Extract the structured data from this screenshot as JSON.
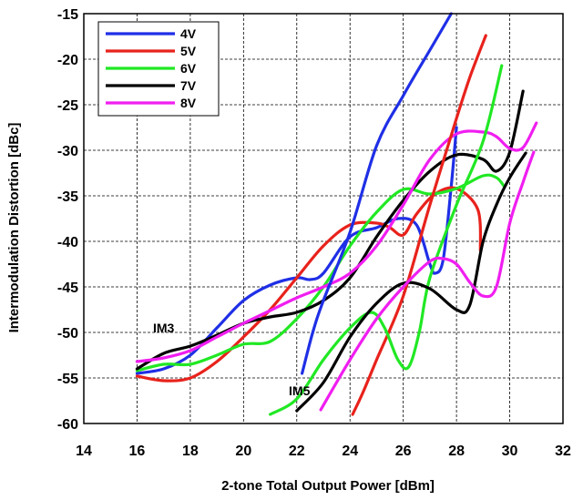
{
  "chart_data": {
    "type": "line",
    "title": "",
    "xlabel": "2-tone Total Output Power  [dBm]",
    "ylabel": "Intermodulation Distortion  [dBc]",
    "xlim": [
      14,
      32
    ],
    "ylim": [
      -60,
      -15
    ],
    "xticks": [
      14,
      16,
      18,
      20,
      22,
      24,
      26,
      28,
      30,
      32
    ],
    "yticks": [
      -15,
      -20,
      -25,
      -30,
      -35,
      -40,
      -45,
      -50,
      -55,
      -60
    ],
    "grid": true,
    "legend_position": "top-left",
    "annotations": [
      {
        "text": "IM3",
        "x": 17.0,
        "y": -50.0
      },
      {
        "text": "IM5",
        "x": 22.1,
        "y": -56.9
      }
    ],
    "series": [
      {
        "name": "4V",
        "color": "#1f2fe6",
        "group": "IM3",
        "points": [
          [
            16,
            -54.5
          ],
          [
            17,
            -54.0
          ],
          [
            18,
            -52.5
          ],
          [
            19,
            -49.5
          ],
          [
            20,
            -46.5
          ],
          [
            21,
            -44.8
          ],
          [
            22,
            -44.0
          ],
          [
            22.5,
            -44.2
          ],
          [
            23,
            -43.5
          ],
          [
            24,
            -39.5
          ],
          [
            25,
            -38.5
          ],
          [
            25.8,
            -37.5
          ],
          [
            26.5,
            -38.2
          ],
          [
            27.0,
            -42.5
          ],
          [
            27.2,
            -43.5
          ],
          [
            27.5,
            -42.0
          ],
          [
            27.8,
            -34.0
          ],
          [
            28.0,
            -27.5
          ]
        ]
      },
      {
        "name": "5V",
        "color": "#e8221c",
        "group": "IM3",
        "points": [
          [
            16,
            -54.8
          ],
          [
            17,
            -55.3
          ],
          [
            18,
            -55.0
          ],
          [
            19,
            -53.2
          ],
          [
            20,
            -50.5
          ],
          [
            21,
            -47.5
          ],
          [
            22,
            -44.0
          ],
          [
            23,
            -40.5
          ],
          [
            24,
            -38.2
          ],
          [
            25,
            -38.0
          ],
          [
            25.5,
            -38.5
          ],
          [
            26,
            -39.3
          ],
          [
            26.5,
            -37.0
          ],
          [
            27.2,
            -34.8
          ],
          [
            28,
            -34.2
          ],
          [
            28.8,
            -36.5
          ],
          [
            28.9,
            -41.0
          ]
        ]
      },
      {
        "name": "6V",
        "color": "#21e824",
        "group": "IM3",
        "points": [
          [
            16,
            -54.2
          ],
          [
            17,
            -53.5
          ],
          [
            18,
            -53.5
          ],
          [
            19,
            -52.5
          ],
          [
            20,
            -51.3
          ],
          [
            21,
            -51.0
          ],
          [
            22,
            -48.5
          ],
          [
            23,
            -45.0
          ],
          [
            24,
            -40.5
          ],
          [
            25,
            -36.8
          ],
          [
            26,
            -34.3
          ],
          [
            27,
            -34.8
          ],
          [
            28,
            -34.2
          ],
          [
            29,
            -32.8
          ],
          [
            29.5,
            -33.0
          ],
          [
            29.8,
            -34.0
          ]
        ]
      },
      {
        "name": "7V",
        "color": "#000000",
        "group": "IM3",
        "points": [
          [
            16,
            -54.0
          ],
          [
            17,
            -52.3
          ],
          [
            18,
            -51.5
          ],
          [
            19,
            -50.3
          ],
          [
            20,
            -49.0
          ],
          [
            21,
            -48.3
          ],
          [
            22,
            -47.8
          ],
          [
            23,
            -46.5
          ],
          [
            24,
            -44.0
          ],
          [
            25,
            -39.5
          ],
          [
            26,
            -35.5
          ],
          [
            27,
            -32.3
          ],
          [
            28,
            -30.5
          ],
          [
            29,
            -31.0
          ],
          [
            29.5,
            -32.3
          ],
          [
            30,
            -30.2
          ],
          [
            30.5,
            -23.5
          ]
        ]
      },
      {
        "name": "8V",
        "color": "#f01ef0",
        "group": "IM3",
        "points": [
          [
            16,
            -53.2
          ],
          [
            17,
            -52.8
          ],
          [
            18,
            -52.0
          ],
          [
            19,
            -50.5
          ],
          [
            20,
            -49.0
          ],
          [
            21,
            -47.6
          ],
          [
            22,
            -46.2
          ],
          [
            23,
            -45.0
          ],
          [
            24,
            -43.5
          ],
          [
            25,
            -40.5
          ],
          [
            26,
            -36.0
          ],
          [
            27,
            -31.0
          ],
          [
            28,
            -28.2
          ],
          [
            29,
            -28.0
          ],
          [
            29.5,
            -28.5
          ],
          [
            30,
            -29.8
          ],
          [
            30.5,
            -29.7
          ],
          [
            31,
            -27.0
          ]
        ]
      },
      {
        "name": "4V IM5",
        "color": "#1f2fe6",
        "group": "IM5",
        "points": [
          [
            22.2,
            -54.5
          ],
          [
            22.6,
            -50.0
          ],
          [
            23,
            -46.5
          ],
          [
            24,
            -39.0
          ],
          [
            25,
            -29.5
          ],
          [
            26,
            -24.0
          ],
          [
            27,
            -19.0
          ],
          [
            27.8,
            -15.0
          ]
        ]
      },
      {
        "name": "5V IM5",
        "color": "#e8221c",
        "group": "IM5",
        "points": [
          [
            24.1,
            -59.0
          ],
          [
            24.5,
            -56.5
          ],
          [
            25,
            -53.0
          ],
          [
            26,
            -46.0
          ],
          [
            27,
            -36.0
          ],
          [
            28,
            -26.5
          ],
          [
            28.5,
            -22.0
          ],
          [
            29.1,
            -17.4
          ]
        ]
      },
      {
        "name": "6V IM5",
        "color": "#21e824",
        "group": "IM5",
        "points": [
          [
            21,
            -59.0
          ],
          [
            22,
            -57.3
          ],
          [
            23,
            -53.0
          ],
          [
            24,
            -49.5
          ],
          [
            24.8,
            -47.8
          ],
          [
            25.3,
            -49.5
          ],
          [
            25.8,
            -53.0
          ],
          [
            26.2,
            -53.8
          ],
          [
            26.6,
            -50.0
          ],
          [
            27,
            -44.0
          ],
          [
            28,
            -36.0
          ],
          [
            29,
            -29.0
          ],
          [
            29.7,
            -20.7
          ]
        ]
      },
      {
        "name": "7V IM5",
        "color": "#000000",
        "group": "IM5",
        "points": [
          [
            22,
            -58.6
          ],
          [
            23,
            -55.5
          ],
          [
            24,
            -50.5
          ],
          [
            25,
            -46.8
          ],
          [
            26,
            -44.6
          ],
          [
            27,
            -45.2
          ],
          [
            28,
            -47.5
          ],
          [
            28.5,
            -47.0
          ],
          [
            29,
            -40.0
          ],
          [
            29.5,
            -36.0
          ],
          [
            30,
            -33.0
          ],
          [
            30.6,
            -30.3
          ]
        ]
      },
      {
        "name": "8V IM5",
        "color": "#f01ef0",
        "group": "IM5",
        "points": [
          [
            22.9,
            -58.5
          ],
          [
            24,
            -53.0
          ],
          [
            25,
            -48.5
          ],
          [
            26,
            -45.0
          ],
          [
            27,
            -42.2
          ],
          [
            27.5,
            -41.9
          ],
          [
            28,
            -42.5
          ],
          [
            28.5,
            -44.5
          ],
          [
            29,
            -46.0
          ],
          [
            29.5,
            -45.0
          ],
          [
            30,
            -38.0
          ],
          [
            30.5,
            -33.5
          ],
          [
            30.9,
            -30.2
          ]
        ]
      }
    ]
  }
}
